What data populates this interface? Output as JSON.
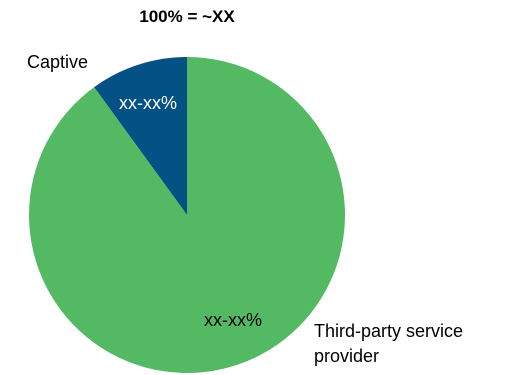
{
  "chart_data": {
    "type": "pie",
    "title": "100% = ~XX",
    "slices": [
      {
        "name": "Captive",
        "value": 10,
        "value_label": "xx-xx%",
        "color": "#045185",
        "label_color": "#ffffff",
        "label_lines": [
          "Captive"
        ]
      },
      {
        "name": "Third-party service provider",
        "value": 90,
        "value_label": "xx-xx%",
        "color": "#54b963",
        "label_color": "#000000",
        "label_lines": [
          "Third-party service",
          "provider"
        ]
      }
    ],
    "start_angle_deg": 324,
    "direction": "clockwise",
    "legend": "none"
  }
}
